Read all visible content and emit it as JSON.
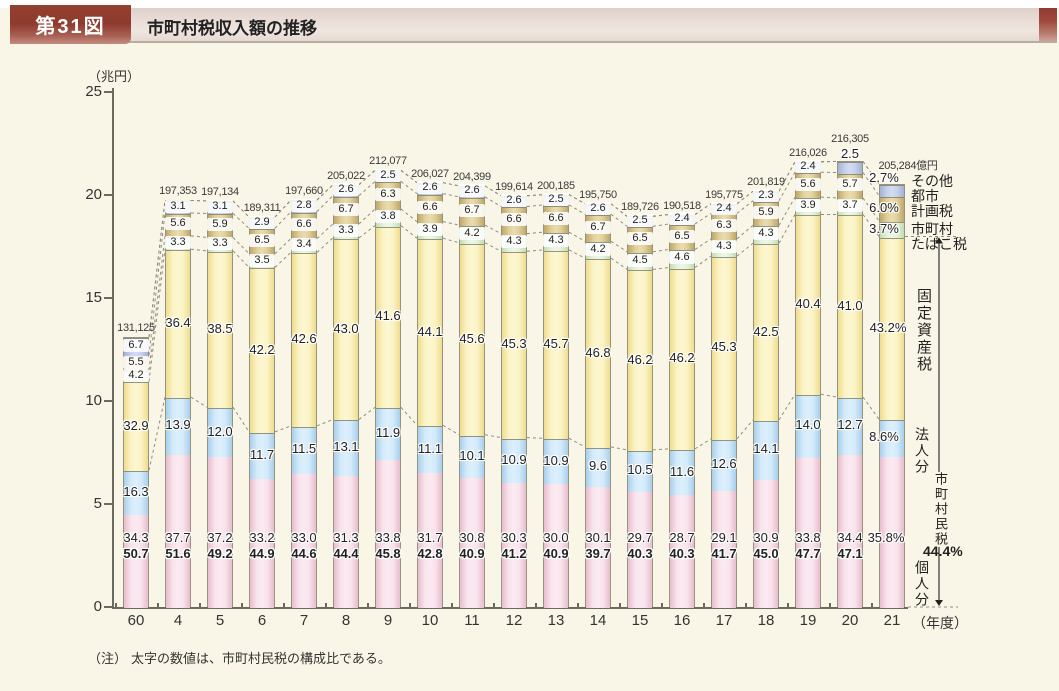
{
  "header": {
    "figure_label": "第31図",
    "title": "市町村税収入額の推移"
  },
  "note": {
    "label": "（注）",
    "text": "太字の数値は、市町村民税の構成比である。"
  },
  "chart_data": {
    "type": "bar",
    "subtype": "stacked-percentage-bars",
    "title": "市町村税収入額の推移",
    "unit_label": "（兆円）",
    "x_unit_label": "（年度）",
    "ylabel": "兆円",
    "ylim": [
      0,
      25
    ],
    "yticks": [
      0,
      5,
      10,
      15,
      20,
      25
    ],
    "grid": false,
    "legend_position": "right",
    "categories": [
      "60",
      "4",
      "5",
      "6",
      "7",
      "8",
      "9",
      "10",
      "11",
      "12",
      "13",
      "14",
      "15",
      "16",
      "17",
      "18",
      "19",
      "20",
      "21"
    ],
    "totals_oku": [
      131125,
      197353,
      197134,
      189311,
      197660,
      205022,
      212077,
      206027,
      204399,
      199614,
      200185,
      195750,
      189726,
      190518,
      195775,
      201819,
      216026,
      216305,
      205284
    ],
    "total_labels": [
      "131,125",
      "197,353",
      "197,134",
      "189,311",
      "197,660",
      "205,022",
      "212,077",
      "206,027",
      "204,399",
      "199,614",
      "200,185",
      "195,750",
      "189,726",
      "190,518",
      "195,775",
      "201,819",
      "216,026",
      "216,305",
      "205,284"
    ],
    "series": [
      {
        "key": "kojin",
        "name": "個人分",
        "values": [
          34.3,
          37.7,
          37.2,
          33.2,
          33.0,
          31.3,
          33.8,
          31.7,
          30.8,
          30.3,
          30.0,
          30.1,
          29.7,
          28.7,
          29.1,
          30.9,
          33.8,
          34.4,
          35.8
        ]
      },
      {
        "key": "hojin",
        "name": "法人分",
        "values": [
          16.3,
          13.9,
          12.0,
          11.7,
          11.5,
          13.1,
          11.9,
          11.1,
          10.1,
          10.9,
          10.9,
          9.6,
          10.5,
          11.6,
          12.6,
          14.1,
          14.0,
          12.7,
          8.6
        ]
      },
      {
        "key": "kotei",
        "name": "固定資産税",
        "values": [
          32.9,
          36.4,
          38.5,
          42.2,
          42.6,
          43.0,
          41.6,
          44.1,
          45.6,
          45.3,
          45.7,
          46.8,
          46.2,
          46.2,
          45.3,
          42.5,
          40.4,
          41.0,
          43.2
        ]
      },
      {
        "key": "tabako",
        "name": "市町村たばこ税",
        "values": [
          4.2,
          3.3,
          3.3,
          3.5,
          3.4,
          3.3,
          3.8,
          3.9,
          4.2,
          4.3,
          4.3,
          4.2,
          4.5,
          4.6,
          4.3,
          4.3,
          3.9,
          3.7,
          3.7
        ]
      },
      {
        "key": "tokei",
        "name": "都市計画税",
        "values": [
          5.5,
          5.6,
          5.9,
          6.5,
          6.6,
          6.7,
          6.3,
          6.6,
          6.7,
          6.6,
          6.6,
          6.7,
          6.5,
          6.5,
          6.3,
          5.9,
          5.6,
          5.7,
          6.0
        ]
      },
      {
        "key": "sonota",
        "name": "その他",
        "values": [
          6.7,
          3.1,
          3.1,
          2.9,
          2.8,
          2.6,
          2.5,
          2.6,
          2.6,
          2.6,
          2.5,
          2.6,
          2.5,
          2.4,
          2.4,
          2.3,
          2.4,
          2.5,
          2.7
        ]
      }
    ],
    "minzei_bold_ratios": [
      50.7,
      51.6,
      49.2,
      44.9,
      44.6,
      44.4,
      45.8,
      42.8,
      40.9,
      41.2,
      40.9,
      39.7,
      40.3,
      40.3,
      41.7,
      45.0,
      47.7,
      47.1,
      44.4
    ],
    "last_bar_pct_labels": {
      "sonota": "2.7%",
      "tokei": "6.0%",
      "tabako": "3.7%",
      "kotei": "43.2%",
      "hojin": "8.6%",
      "kojin": "35.8%"
    },
    "right_labels": {
      "total_unit": "億円",
      "sonota": "その他",
      "toshi_line1": "都市",
      "toshi_line2": "計画税",
      "tabako_line1": "市町村",
      "tabako_line2": "たばこ税",
      "kotei": "固定資産税",
      "hojin": "法人分",
      "minzei": "市町村民税",
      "minzei_pct": "44.4%",
      "kojin": "個人分"
    },
    "colors": {
      "kojin": "#f8e3ec",
      "hojin": "#d3eafa",
      "kotei": "#fbf3c4",
      "tabako": "#e7f2dd",
      "tokei": "#e0d09c",
      "sonota": "#c8d2ec",
      "header_maroon": "#8e3a2e",
      "background": "#faf6e7"
    }
  }
}
